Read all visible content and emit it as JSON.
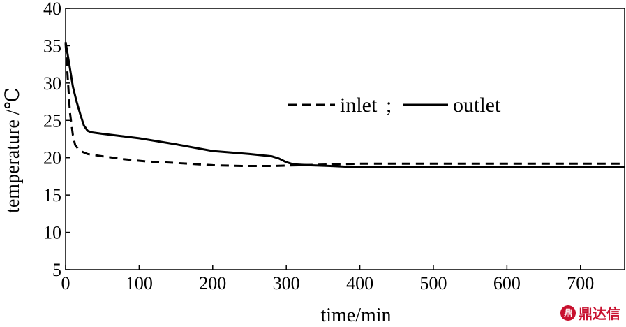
{
  "chart_data": {
    "type": "line",
    "title": "",
    "xlabel": "time/min",
    "ylabel": "temperature /℃",
    "xlim": [
      0,
      760
    ],
    "ylim": [
      5,
      40
    ],
    "xticks": [
      0,
      100,
      200,
      300,
      400,
      500,
      600,
      700
    ],
    "yticks": [
      5,
      10,
      15,
      20,
      25,
      30,
      35,
      40
    ],
    "grid": false,
    "legend": {
      "placement": "center-right",
      "separator": ";"
    },
    "series": [
      {
        "name": "inlet",
        "style": "dashed",
        "color": "#000000",
        "x": [
          0,
          3,
          6,
          10,
          13,
          17,
          20,
          30,
          50,
          80,
          110,
          150,
          200,
          240,
          280,
          320,
          360,
          400,
          500,
          600,
          700,
          760
        ],
        "y": [
          35.3,
          30.5,
          26.0,
          23.0,
          21.7,
          21.2,
          20.9,
          20.5,
          20.2,
          19.8,
          19.5,
          19.3,
          19.0,
          18.9,
          18.9,
          19.0,
          19.1,
          19.2,
          19.2,
          19.2,
          19.2,
          19.2
        ]
      },
      {
        "name": "outlet",
        "style": "solid",
        "color": "#000000",
        "x": [
          0,
          5,
          10,
          15,
          20,
          25,
          30,
          35,
          50,
          100,
          150,
          200,
          250,
          280,
          290,
          300,
          310,
          330,
          360,
          380,
          400,
          500,
          600,
          700,
          760
        ],
        "y": [
          35.5,
          32.5,
          29.5,
          27.5,
          25.8,
          24.3,
          23.6,
          23.4,
          23.2,
          22.6,
          21.8,
          20.9,
          20.5,
          20.2,
          19.9,
          19.4,
          19.1,
          19.0,
          18.9,
          18.8,
          18.8,
          18.8,
          18.8,
          18.8,
          18.8
        ]
      }
    ]
  },
  "watermark": {
    "logo_icon": "dingdaxin-logo-icon",
    "text": "鼎达信",
    "color": "#c8102e"
  }
}
